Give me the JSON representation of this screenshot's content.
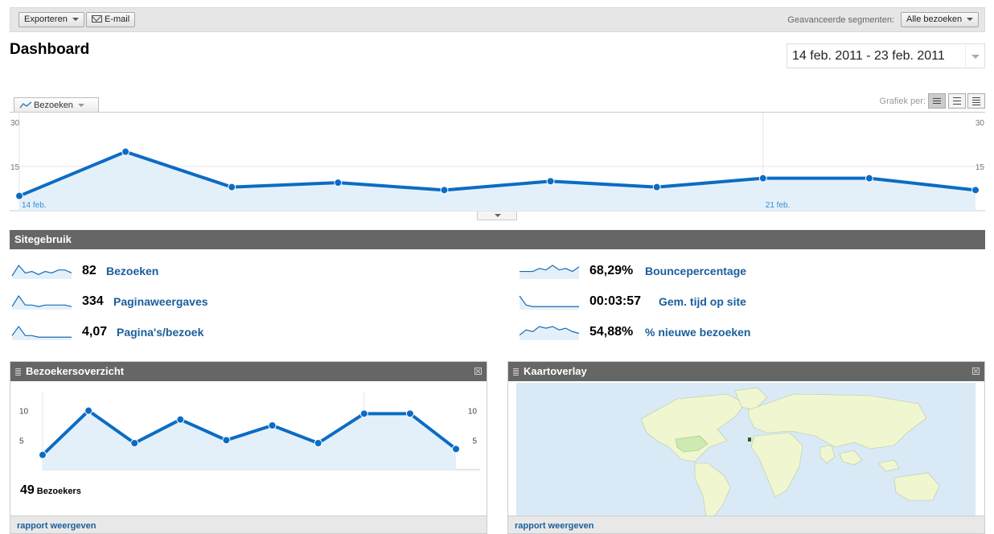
{
  "toolbar": {
    "export_label": "Exporteren",
    "email_label": "E-mail",
    "segments_label": "Geavanceerde segmenten:",
    "segments_value": "Alle bezoeken"
  },
  "page": {
    "title": "Dashboard",
    "date_range": "14 feb. 2011 - 23 feb. 2011"
  },
  "graph": {
    "metric_tab": "Bezoeken",
    "graph_by_label": "Grafiek per:",
    "icon_day": "day-view-icon",
    "icon_week": "week-view-icon",
    "icon_month": "month-view-icon"
  },
  "chart_data": [
    {
      "type": "area",
      "x": [
        "14 feb.",
        "15 feb.",
        "16 feb.",
        "17 feb.",
        "18 feb.",
        "19 feb.",
        "20 feb.",
        "21 feb.",
        "22 feb.",
        "23 feb."
      ],
      "y_ticks_left": [
        "30",
        "15"
      ],
      "y_ticks_right": [
        "30",
        "15"
      ],
      "x_tick_labels": [
        "14 feb.",
        "21 feb."
      ],
      "ylim": [
        0,
        30
      ],
      "series": [
        {
          "values": [
            5,
            20,
            8,
            9.5,
            7,
            10,
            8,
            11,
            11,
            7
          ]
        }
      ],
      "color": "#0b6cc4"
    },
    {
      "type": "area",
      "ylim": [
        0,
        12
      ],
      "y_ticks_left": [
        "10",
        "5"
      ],
      "y_ticks_right": [
        "10",
        "5"
      ],
      "series": [
        {
          "values": [
            2.5,
            10,
            4.5,
            8.5,
            5,
            7.5,
            4.5,
            9.5,
            9.5,
            3.5
          ]
        }
      ],
      "color": "#0b6cc4"
    }
  ],
  "site_usage": {
    "title": "Sitegebruik",
    "metrics": [
      {
        "value": "82",
        "label": "Bezoeken",
        "spark": [
          2,
          9,
          4,
          5,
          3,
          5,
          4,
          6,
          6,
          4
        ]
      },
      {
        "value": "334",
        "label": "Paginaweergaves",
        "spark": [
          2,
          9,
          3,
          3,
          2,
          3,
          3,
          3,
          3,
          2
        ]
      },
      {
        "value": "4,07",
        "label": "Pagina's/bezoek",
        "spark": [
          3,
          9,
          3,
          3,
          2,
          2,
          2,
          2,
          2,
          2
        ]
      },
      {
        "value": "68,29%",
        "label": "Bouncepercentage",
        "spark": [
          5,
          5,
          5,
          7,
          6,
          9,
          6,
          7,
          5,
          8
        ]
      },
      {
        "value": "00:03:57",
        "label": "Gem. tijd op site",
        "spark": [
          9,
          3,
          2,
          2,
          2,
          2,
          2,
          2,
          2,
          2
        ]
      },
      {
        "value": "54,88%",
        "label": "% nieuwe bezoeken",
        "spark": [
          3,
          6,
          5,
          8,
          7,
          8,
          6,
          7,
          5,
          4
        ]
      }
    ]
  },
  "visitors_panel": {
    "title": "Bezoekersoverzicht",
    "count": "49",
    "count_label": "Bezoekers",
    "link": "rapport weergeven"
  },
  "map_panel": {
    "title": "Kaartoverlay",
    "link": "rapport weergeven"
  }
}
